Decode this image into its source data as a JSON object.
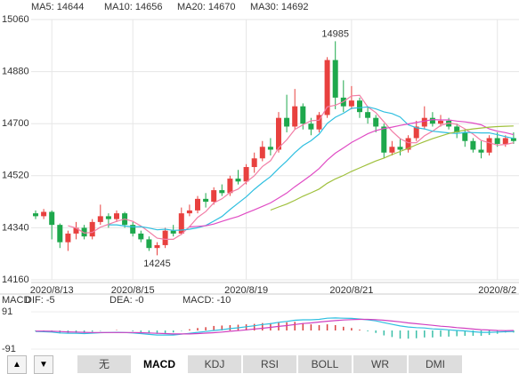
{
  "chart_data": [
    {
      "type": "candlestick",
      "categories": [
        null,
        null,
        "2020/8/13",
        null,
        null,
        null,
        null,
        null,
        null,
        null,
        null,
        null,
        "2020/8/15",
        null,
        null,
        null,
        null,
        null,
        null,
        null,
        null,
        null,
        null,
        null,
        null,
        null,
        "2020/8/19",
        null,
        null,
        null,
        null,
        null,
        null,
        null,
        null,
        null,
        null,
        null,
        null,
        "2020/8/21",
        null,
        null,
        null,
        null,
        null,
        null,
        null,
        null,
        null,
        null,
        null,
        null,
        null,
        null,
        null,
        null,
        null,
        "2020/8/2",
        null,
        null
      ],
      "open": [
        14390,
        14380,
        14395,
        14350,
        14290,
        14320,
        14340,
        14310,
        14360,
        14380,
        14370,
        14390,
        14350,
        14320,
        14300,
        14270,
        14280,
        14330,
        14320,
        14390,
        14400,
        14440,
        14430,
        14470,
        14460,
        14510,
        14500,
        14550,
        14580,
        14620,
        14610,
        14720,
        14690,
        14760,
        14700,
        14680,
        14730,
        14920,
        14790,
        14760,
        14780,
        14740,
        14720,
        14690,
        14600,
        14620,
        14610,
        14650,
        14690,
        14720,
        14700,
        14710,
        14690,
        14670,
        14640,
        14610,
        14600,
        14650,
        14630,
        14650
      ],
      "close": [
        14380,
        14395,
        14350,
        14290,
        14320,
        14340,
        14310,
        14360,
        14380,
        14370,
        14390,
        14350,
        14320,
        14300,
        14270,
        14280,
        14330,
        14320,
        14390,
        14400,
        14440,
        14430,
        14470,
        14460,
        14510,
        14500,
        14550,
        14580,
        14620,
        14610,
        14720,
        14690,
        14760,
        14700,
        14680,
        14730,
        14920,
        14790,
        14760,
        14780,
        14740,
        14720,
        14690,
        14600,
        14620,
        14610,
        14650,
        14690,
        14720,
        14700,
        14710,
        14690,
        14670,
        14640,
        14610,
        14600,
        14650,
        14630,
        14650,
        14640
      ],
      "high": [
        14400,
        14405,
        14400,
        14355,
        14330,
        14360,
        14350,
        14370,
        14420,
        14390,
        14400,
        14395,
        14360,
        14330,
        14310,
        14290,
        14340,
        14350,
        14410,
        14420,
        14450,
        14460,
        14480,
        14490,
        14520,
        14540,
        14560,
        14600,
        14640,
        14650,
        14740,
        14800,
        14820,
        14770,
        14720,
        14740,
        14930,
        14985,
        14850,
        14830,
        14790,
        14760,
        14730,
        14700,
        14640,
        14650,
        14660,
        14710,
        14760,
        14740,
        14730,
        14720,
        14700,
        14680,
        14650,
        14640,
        14660,
        14670,
        14660,
        14670
      ],
      "low": [
        14370,
        14370,
        14300,
        14270,
        14260,
        14300,
        14300,
        14300,
        14350,
        14340,
        14360,
        14340,
        14310,
        14290,
        14260,
        14245,
        14270,
        14310,
        14315,
        14380,
        14390,
        14410,
        14420,
        14450,
        14450,
        14490,
        14490,
        14530,
        14570,
        14590,
        14600,
        14670,
        14680,
        14680,
        14660,
        14670,
        14720,
        14750,
        14740,
        14750,
        14720,
        14700,
        14670,
        14580,
        14590,
        14590,
        14600,
        14640,
        14680,
        14690,
        14690,
        14680,
        14650,
        14620,
        14600,
        14580,
        14590,
        14620,
        14620,
        14630
      ],
      "up_color": "#e8413f",
      "down_color": "#1ea84c",
      "series": [
        {
          "name": "MA5: 14644",
          "color": "#f27ea6",
          "values": [
            null,
            null,
            null,
            null,
            14347,
            14339,
            14322,
            14324,
            14342,
            14352,
            14362,
            14370,
            14362,
            14346,
            14326,
            14304,
            14300,
            14300,
            14318,
            14344,
            14376,
            14396,
            14426,
            14440,
            14462,
            14474,
            14498,
            14520,
            14552,
            14572,
            14616,
            14644,
            14680,
            14696,
            14710,
            14712,
            14758,
            14764,
            14776,
            14796,
            14798,
            14758,
            14738,
            14706,
            14674,
            14648,
            14634,
            14634,
            14658,
            14674,
            14694,
            14702,
            14698,
            14682,
            14664,
            14642,
            14634,
            14626,
            14628,
            14634
          ]
        },
        {
          "name": "MA10: 14656",
          "color": "#2fbfe0",
          "values": [
            null,
            null,
            null,
            null,
            null,
            null,
            null,
            null,
            null,
            14350,
            14350,
            14346,
            14343,
            14344,
            14339,
            14333,
            14335,
            14331,
            14332,
            14335,
            14340,
            14348,
            14363,
            14379,
            14403,
            14425,
            14447,
            14473,
            14496,
            14517,
            14545,
            14571,
            14600,
            14624,
            14641,
            14664,
            14701,
            14722,
            14736,
            14753,
            14755,
            14758,
            14751,
            14741,
            14735,
            14723,
            14696,
            14686,
            14682,
            14674,
            14671,
            14668,
            14666,
            14670,
            14669,
            14668,
            14668,
            14662,
            14655,
            14649
          ]
        },
        {
          "name": "MA20: 14670",
          "color": "#e04cc4",
          "values": [
            null,
            null,
            null,
            null,
            null,
            null,
            null,
            null,
            null,
            null,
            null,
            null,
            null,
            null,
            null,
            null,
            null,
            null,
            null,
            14343,
            14345,
            14347,
            14353,
            14362,
            14371,
            14379,
            14391,
            14402,
            14414,
            14426,
            14443,
            14460,
            14482,
            14502,
            14522,
            14545,
            14574,
            14598,
            14616,
            14635,
            14650,
            14665,
            14676,
            14683,
            14688,
            14694,
            14699,
            14704,
            14709,
            14714,
            14713,
            14713,
            14709,
            14706,
            14702,
            14696,
            14682,
            14674,
            14669,
            14662
          ]
        },
        {
          "name": "MA30: 14692",
          "color": "#9fc03c",
          "values": [
            null,
            null,
            null,
            null,
            null,
            null,
            null,
            null,
            null,
            null,
            null,
            null,
            null,
            null,
            null,
            null,
            null,
            null,
            null,
            null,
            null,
            null,
            null,
            null,
            null,
            null,
            null,
            null,
            null,
            14401,
            14412,
            14422,
            14435,
            14449,
            14461,
            14474,
            14494,
            14509,
            14521,
            14535,
            14547,
            14559,
            14571,
            14581,
            14593,
            14604,
            14615,
            14627,
            14638,
            14648,
            14657,
            14666,
            14672,
            14678,
            14682,
            14685,
            14688,
            14690,
            14691,
            14692
          ]
        }
      ],
      "ylim": [
        14160,
        15060
      ],
      "yticks": [
        15060,
        14880,
        14700,
        14520,
        14340,
        14160
      ],
      "grid": true
    },
    {
      "type": "macd",
      "title": "MACD",
      "series": [
        {
          "name": "DIF: -5",
          "color": "#2fbfe0",
          "values": [
            -5,
            -6,
            -8,
            -12,
            -14,
            -14,
            -15,
            -13,
            -11,
            -10,
            -9,
            -10,
            -12,
            -15,
            -19,
            -22,
            -22,
            -22,
            -18,
            -14,
            -9,
            -5,
            0,
            4,
            9,
            13,
            18,
            23,
            29,
            33,
            40,
            44,
            50,
            52,
            52,
            54,
            60,
            61,
            60,
            59,
            56,
            52,
            47,
            38,
            30,
            22,
            17,
            14,
            12,
            8,
            6,
            3,
            0,
            -2,
            -6,
            -9,
            -9,
            -8,
            -6,
            -5
          ]
        },
        {
          "name": "DEA: -0",
          "color": "#d040c0",
          "values": [
            -3,
            -3,
            -4,
            -5,
            -7,
            -8,
            -9,
            -10,
            -10,
            -10,
            -10,
            -10,
            -10,
            -11,
            -12,
            -14,
            -15,
            -17,
            -17,
            -17,
            -15,
            -13,
            -11,
            -8,
            -4,
            -1,
            3,
            7,
            11,
            15,
            20,
            24,
            29,
            34,
            37,
            41,
            45,
            48,
            51,
            53,
            54,
            54,
            53,
            50,
            46,
            42,
            37,
            33,
            29,
            25,
            21,
            18,
            14,
            11,
            7,
            4,
            2,
            0,
            -1,
            0
          ]
        }
      ],
      "histogram": {
        "name": "MACD: -10",
        "up_color": "#d9413f",
        "down_color": "#3bbfa8",
        "values": [
          -4,
          -6,
          -8,
          -14,
          -14,
          -12,
          -12,
          -6,
          -2,
          0,
          2,
          0,
          -4,
          -8,
          -14,
          -16,
          -14,
          -10,
          -2,
          6,
          12,
          16,
          22,
          24,
          26,
          28,
          30,
          32,
          36,
          36,
          40,
          40,
          42,
          36,
          30,
          26,
          30,
          26,
          18,
          12,
          4,
          -4,
          -12,
          -24,
          -32,
          -40,
          -40,
          -38,
          -34,
          -34,
          -30,
          -30,
          -28,
          -26,
          -26,
          -26,
          -22,
          -16,
          -10,
          -10
        ]
      },
      "ylim": [
        -91,
        91
      ],
      "yticks": [
        91,
        -91
      ]
    }
  ],
  "controls": {
    "arrows": [
      "▲",
      "▼"
    ],
    "tabs": [
      "无",
      "MACD",
      "KDJ",
      "RSI",
      "BOLL",
      "WR",
      "DMI"
    ],
    "selected": "MACD"
  }
}
